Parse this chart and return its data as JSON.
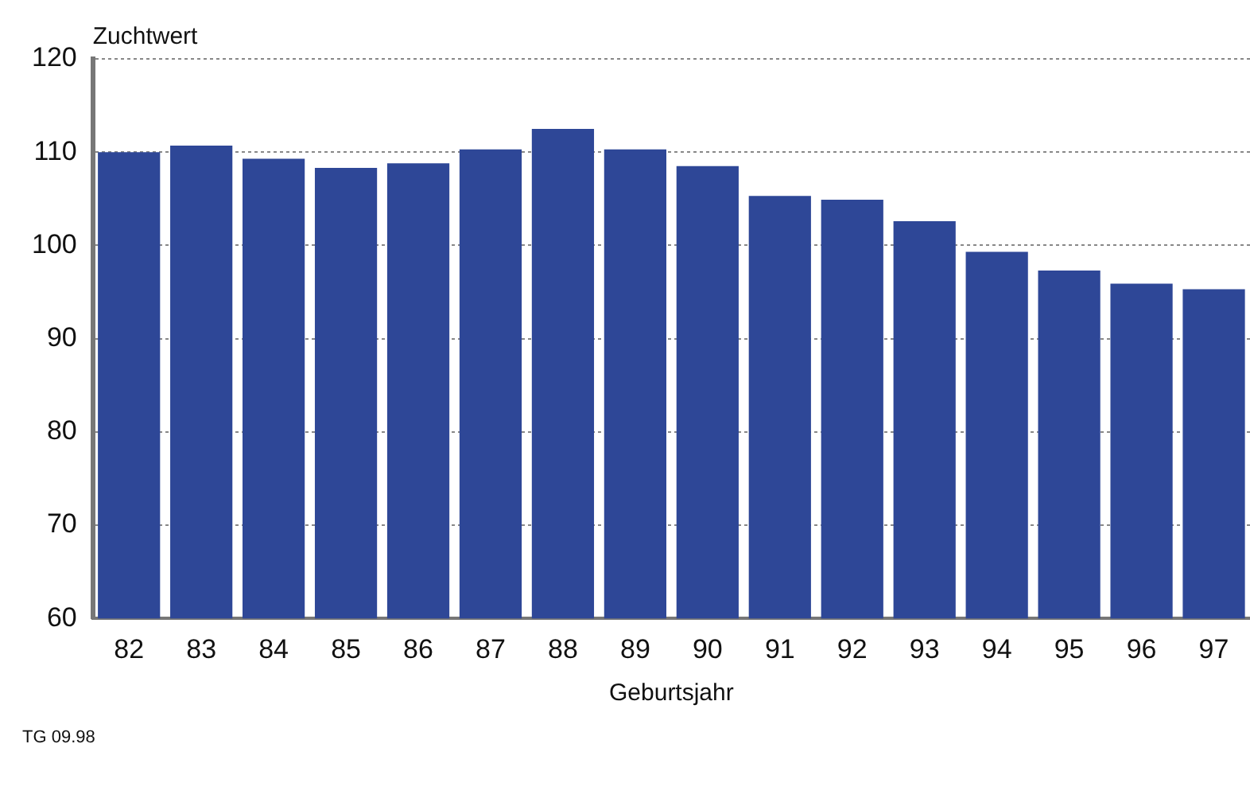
{
  "chart_data": {
    "type": "bar",
    "xlabel": "Geburtsjahr",
    "ylabel": "Zuchtwert",
    "categories": [
      "82",
      "83",
      "84",
      "85",
      "86",
      "87",
      "88",
      "89",
      "90",
      "91",
      "92",
      "93",
      "94",
      "95",
      "96",
      "97"
    ],
    "values": [
      110.0,
      110.7,
      109.3,
      108.3,
      108.8,
      110.3,
      112.5,
      110.3,
      108.5,
      105.3,
      104.9,
      102.6,
      99.3,
      97.3,
      95.9,
      95.3
    ],
    "color": "#2e4797",
    "ylim": [
      60,
      120
    ],
    "yticks": [
      60,
      70,
      80,
      90,
      100,
      110,
      120
    ],
    "grid": "y",
    "annotations": [
      "TG 09.98"
    ]
  }
}
